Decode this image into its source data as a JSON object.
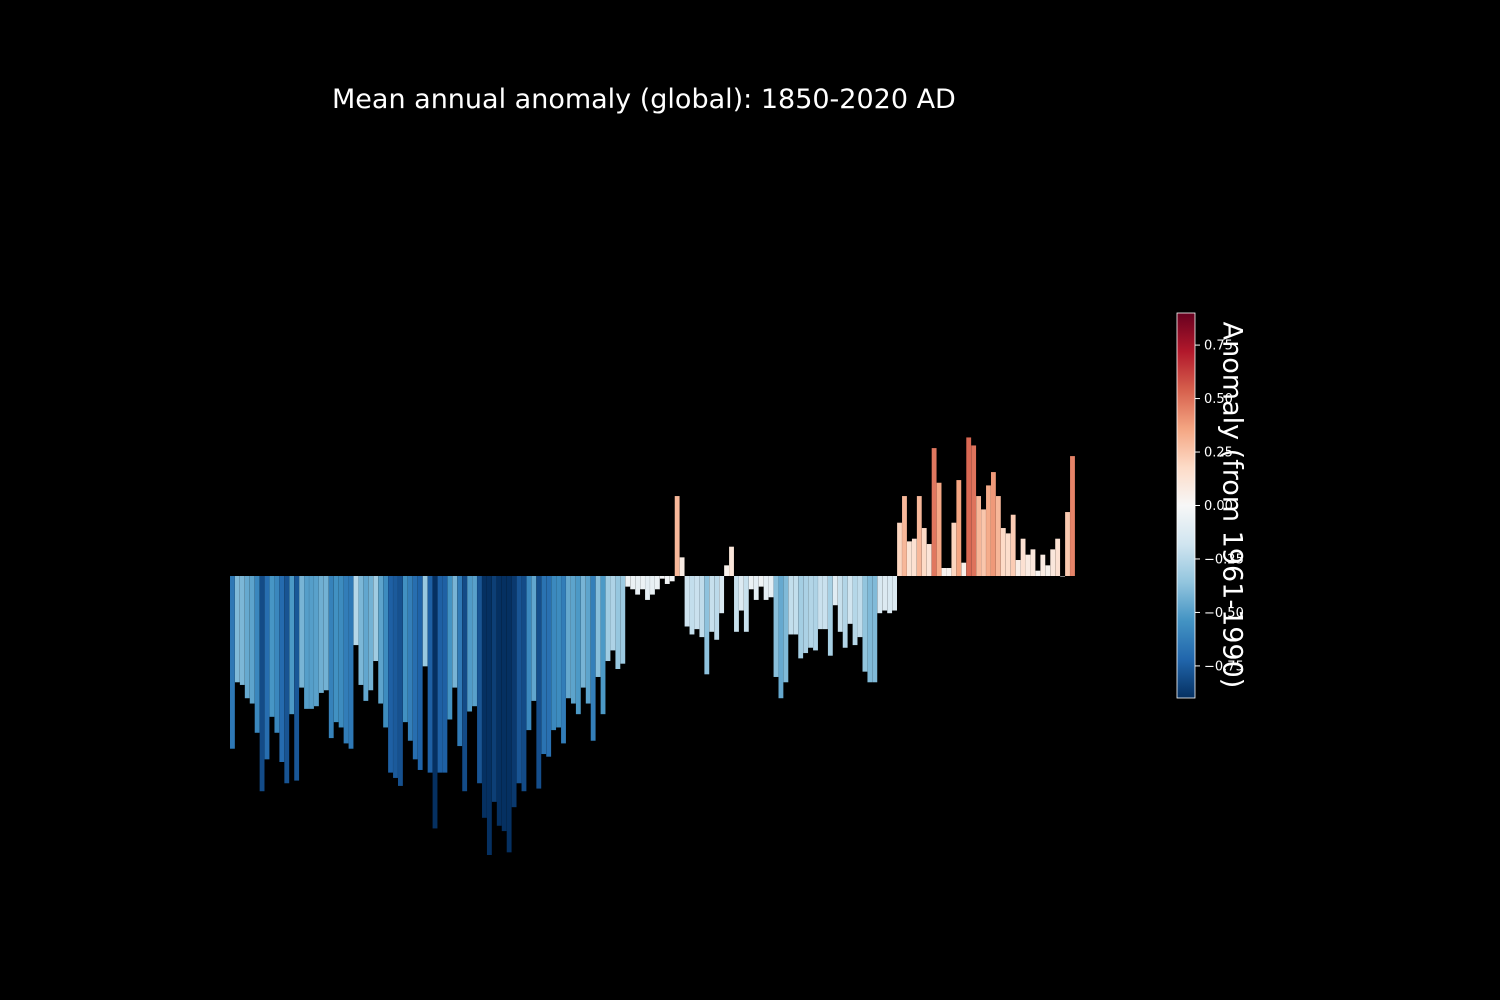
{
  "chart_data": {
    "type": "bar",
    "title": "Mean annual anomaly (global): 1850-2020 AD",
    "x_start": 1850,
    "x_end": 2020,
    "values": [
      -0.65,
      -0.4,
      -0.41,
      -0.46,
      -0.48,
      -0.59,
      -0.81,
      -0.69,
      -0.53,
      -0.59,
      -0.7,
      -0.78,
      -0.52,
      -0.77,
      -0.42,
      -0.5,
      -0.5,
      -0.49,
      -0.44,
      -0.43,
      -0.61,
      -0.55,
      -0.57,
      -0.63,
      -0.65,
      -0.26,
      -0.41,
      -0.47,
      -0.43,
      -0.32,
      -0.48,
      -0.57,
      -0.74,
      -0.76,
      -0.79,
      -0.55,
      -0.62,
      -0.69,
      -0.73,
      -0.34,
      -0.74,
      -0.95,
      -0.74,
      -0.74,
      -0.54,
      -0.42,
      -0.64,
      -0.81,
      -0.51,
      -0.49,
      -0.78,
      -0.91,
      -1.05,
      -0.85,
      -0.94,
      -0.96,
      -1.04,
      -0.87,
      -0.78,
      -0.81,
      -0.58,
      -0.47,
      -0.8,
      -0.67,
      -0.68,
      -0.58,
      -0.57,
      -0.63,
      -0.46,
      -0.48,
      -0.52,
      -0.42,
      -0.48,
      -0.62,
      -0.38,
      -0.52,
      -0.32,
      -0.28,
      -0.35,
      -0.33,
      -0.04,
      -0.05,
      -0.07,
      -0.05,
      -0.09,
      -0.07,
      -0.05,
      -0.01,
      -0.03,
      -0.02,
      0.3,
      0.07,
      -0.19,
      -0.22,
      -0.2,
      -0.23,
      -0.37,
      -0.21,
      -0.24,
      -0.14,
      0.04,
      0.11,
      -0.21,
      -0.13,
      -0.21,
      -0.05,
      -0.09,
      -0.04,
      -0.09,
      -0.08,
      -0.38,
      -0.46,
      -0.4,
      -0.22,
      -0.22,
      -0.31,
      -0.29,
      -0.27,
      -0.28,
      -0.2,
      -0.2,
      -0.3,
      -0.11,
      -0.21,
      -0.27,
      -0.18,
      -0.26,
      -0.23,
      -0.36,
      -0.4,
      -0.4,
      -0.14,
      -0.13,
      -0.14,
      -0.13,
      0.2,
      0.3,
      0.13,
      0.14,
      0.3,
      0.18,
      0.12,
      0.48,
      0.35,
      0.03,
      0.03,
      0.2,
      0.36,
      0.05,
      0.52,
      0.49,
      0.3,
      0.25,
      0.34,
      0.39,
      0.3,
      0.18,
      0.16,
      0.23,
      0.06,
      0.14,
      0.08,
      0.1,
      0.02,
      0.08,
      0.04,
      0.1,
      0.14,
      0.0,
      0.24,
      0.45
    ],
    "ylim": [
      -1.05,
      1.58
    ],
    "xlabel": "",
    "ylabel": "",
    "grid": false,
    "colormap": "RdBu_r",
    "colorbar": {
      "label": "Anomaly (from 1961-1990)",
      "range": [
        -0.9,
        0.9
      ],
      "ticks": [
        "−0.75",
        "−0.50",
        "−0.25",
        "0.00",
        "0.25",
        "0.50",
        "0.75"
      ],
      "tick_values": [
        -0.75,
        -0.5,
        -0.25,
        0,
        0.25,
        0.5,
        0.75
      ]
    },
    "colors": [
      "#053061",
      "#2166ac",
      "#4393c3",
      "#92c5de",
      "#d1e5f0",
      "#f7f7f7",
      "#fddbc7",
      "#f4a582",
      "#d6604d",
      "#b2182b",
      "#67001f"
    ]
  }
}
